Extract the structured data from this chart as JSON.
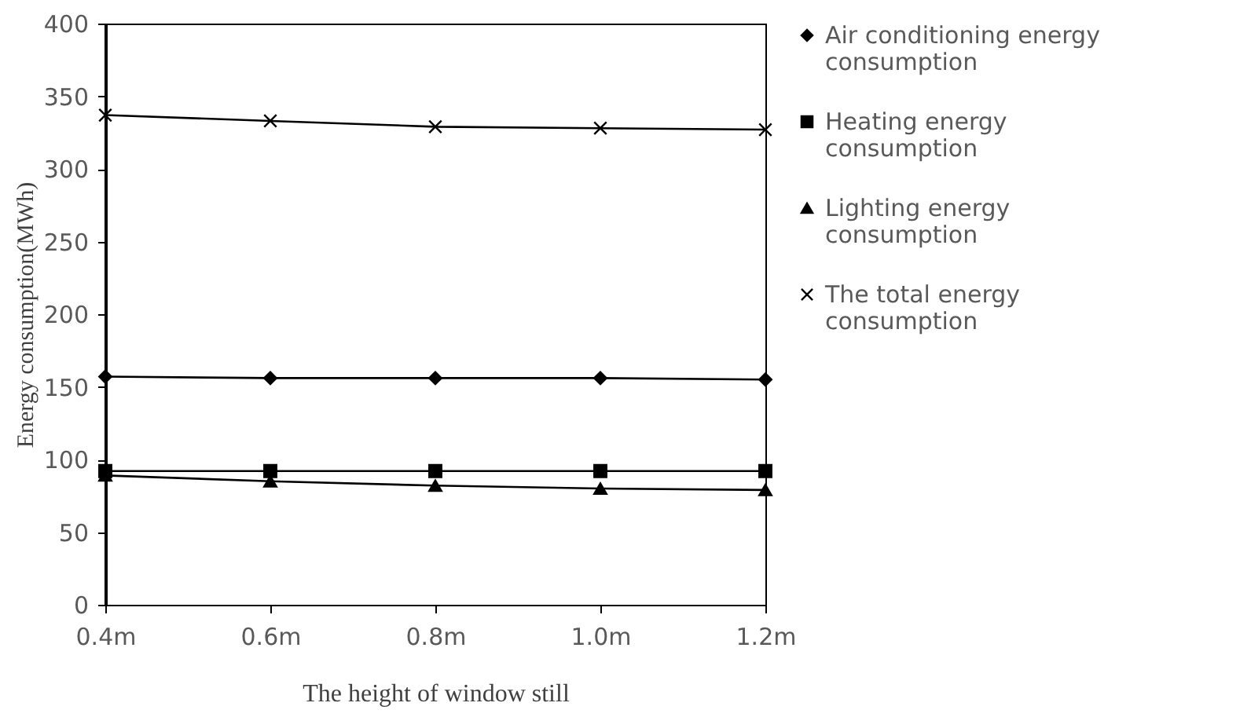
{
  "chart_data": {
    "type": "line",
    "xlabel": "The height of window still",
    "ylabel": "Energy consumption(MWh)",
    "categories": [
      "0.4m",
      "0.6m",
      "0.8m",
      "1.0m",
      "1.2m"
    ],
    "series": [
      {
        "name": "Air conditioning energy consumption",
        "color": "#000000",
        "marker": "diamond",
        "values": [
          157,
          156,
          156,
          156,
          155
        ]
      },
      {
        "name": "Heating energy consumption",
        "color": "#000000",
        "marker": "square",
        "values": [
          92,
          92,
          92,
          92,
          92
        ]
      },
      {
        "name": "Lighting energy consumption",
        "color": "#000000",
        "marker": "triangle",
        "values": [
          89,
          85,
          82,
          80,
          79
        ]
      },
      {
        "name": "The total energy consumption",
        "color": "#000000",
        "marker": "cross",
        "values": [
          337,
          333,
          329,
          328,
          327
        ]
      }
    ],
    "ylim": [
      0,
      400
    ],
    "yticks": [
      0,
      50,
      100,
      150,
      200,
      250,
      300,
      350,
      400
    ],
    "grid": false,
    "legend": "right"
  }
}
